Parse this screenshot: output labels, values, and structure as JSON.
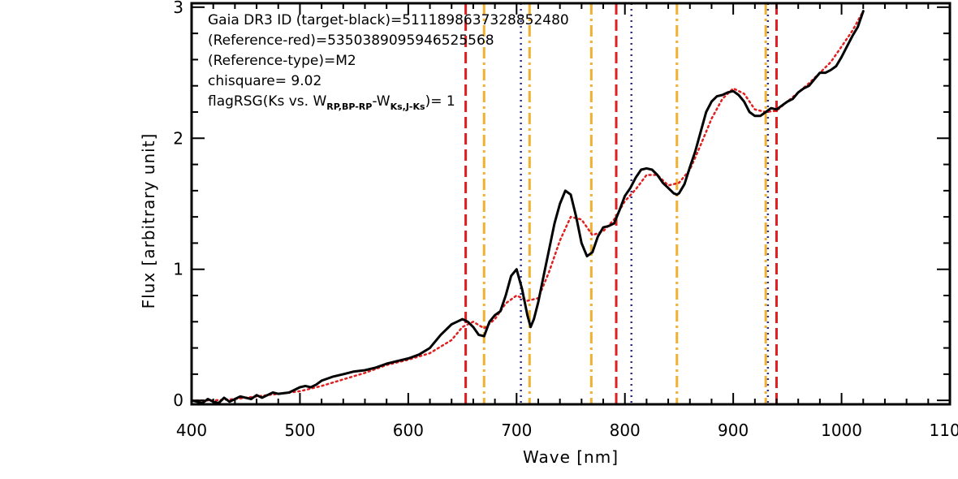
{
  "chart_data": {
    "type": "line",
    "xlabel": "Wave [nm]",
    "ylabel": "Flux [arbitrary unit]",
    "xlim": [
      400,
      1100
    ],
    "ylim": [
      -0.03,
      3.03
    ],
    "x_ticks": [
      400,
      500,
      600,
      700,
      800,
      900,
      1000,
      1100
    ],
    "x_tick_labels": [
      "400",
      "500",
      "600",
      "700",
      "800",
      "900",
      "1000",
      "1100"
    ],
    "y_ticks": [
      0,
      1,
      2,
      3
    ],
    "y_tick_labels": [
      "0",
      "1",
      "2",
      "3"
    ],
    "grid": false,
    "annotations": {
      "line1": "Gaia DR3 ID (target-black)=5111898637328852480",
      "line2": "(Reference-red)=5350389095946525568",
      "line3": "(Reference-type)=M2",
      "line4": "chisquare= 9.02",
      "line5_prefix": "flagRSG(Ks vs. W",
      "line5_sub1": "RP,BP-RP",
      "line5_mid": "-W",
      "line5_sub2": "Ks,J-Ks",
      "line5_suffix": ")= 1"
    },
    "series": [
      {
        "color": "#000000",
        "style": "solid",
        "x": [
          400,
          405,
          410,
          415,
          420,
          425,
          430,
          435,
          440,
          445,
          450,
          455,
          460,
          465,
          470,
          475,
          480,
          490,
          500,
          505,
          510,
          515,
          520,
          530,
          540,
          550,
          560,
          570,
          580,
          590,
          600,
          610,
          620,
          630,
          640,
          645,
          650,
          655,
          660,
          665,
          670,
          675,
          680,
          685,
          690,
          695,
          700,
          705,
          710,
          713,
          716,
          720,
          725,
          730,
          735,
          740,
          745,
          750,
          755,
          760,
          765,
          770,
          775,
          780,
          785,
          790,
          795,
          800,
          805,
          810,
          815,
          820,
          825,
          830,
          835,
          840,
          845,
          848,
          850,
          855,
          860,
          865,
          870,
          875,
          880,
          885,
          890,
          895,
          900,
          905,
          910,
          915,
          920,
          925,
          930,
          935,
          940,
          945,
          950,
          955,
          960,
          965,
          970,
          975,
          980,
          985,
          990,
          995,
          1000,
          1005,
          1010,
          1015,
          1020
        ],
        "y": [
          0.0,
          -0.01,
          -0.02,
          0.01,
          -0.01,
          -0.02,
          0.02,
          -0.01,
          0.01,
          0.03,
          0.02,
          0.01,
          0.04,
          0.02,
          0.04,
          0.06,
          0.05,
          0.06,
          0.1,
          0.11,
          0.1,
          0.12,
          0.15,
          0.18,
          0.2,
          0.22,
          0.23,
          0.25,
          0.28,
          0.3,
          0.32,
          0.35,
          0.4,
          0.5,
          0.58,
          0.6,
          0.62,
          0.6,
          0.56,
          0.5,
          0.49,
          0.6,
          0.65,
          0.68,
          0.8,
          0.95,
          1.0,
          0.85,
          0.65,
          0.56,
          0.62,
          0.75,
          0.95,
          1.15,
          1.35,
          1.5,
          1.6,
          1.57,
          1.4,
          1.2,
          1.1,
          1.13,
          1.25,
          1.32,
          1.33,
          1.35,
          1.45,
          1.56,
          1.62,
          1.7,
          1.76,
          1.77,
          1.76,
          1.72,
          1.66,
          1.62,
          1.58,
          1.57,
          1.58,
          1.65,
          1.78,
          1.9,
          2.05,
          2.2,
          2.28,
          2.32,
          2.33,
          2.35,
          2.36,
          2.33,
          2.28,
          2.2,
          2.17,
          2.17,
          2.2,
          2.23,
          2.22,
          2.25,
          2.28,
          2.3,
          2.35,
          2.38,
          2.4,
          2.45,
          2.5,
          2.5,
          2.52,
          2.55,
          2.62,
          2.7,
          2.78,
          2.85,
          2.97
        ]
      },
      {
        "color": "#e02020",
        "style": "dotted",
        "x": [
          400,
          420,
          440,
          460,
          480,
          500,
          520,
          540,
          560,
          580,
          600,
          620,
          640,
          650,
          660,
          670,
          680,
          690,
          700,
          710,
          720,
          730,
          740,
          750,
          760,
          770,
          780,
          790,
          800,
          810,
          820,
          830,
          840,
          850,
          860,
          870,
          880,
          890,
          900,
          910,
          920,
          930,
          940,
          950,
          960,
          970,
          980,
          990,
          1000,
          1010,
          1020
        ],
        "y": [
          0.0,
          0.0,
          0.01,
          0.03,
          0.05,
          0.07,
          0.11,
          0.16,
          0.21,
          0.27,
          0.31,
          0.36,
          0.46,
          0.56,
          0.6,
          0.55,
          0.62,
          0.74,
          0.8,
          0.76,
          0.78,
          0.98,
          1.22,
          1.4,
          1.38,
          1.26,
          1.29,
          1.38,
          1.52,
          1.61,
          1.72,
          1.72,
          1.64,
          1.66,
          1.76,
          1.95,
          2.15,
          2.3,
          2.38,
          2.34,
          2.22,
          2.2,
          2.21,
          2.28,
          2.35,
          2.42,
          2.5,
          2.58,
          2.7,
          2.82,
          2.97
        ]
      }
    ],
    "vertical_lines": {
      "red_dashed": [
        653,
        792,
        940
      ],
      "orange_dashdot": [
        670,
        712,
        769,
        848,
        930
      ],
      "navy_dotted": [
        704,
        806,
        932
      ]
    },
    "colors": {
      "red": "#e02020",
      "orange": "#f0b030",
      "navy": "#303090",
      "black": "#000000"
    }
  }
}
